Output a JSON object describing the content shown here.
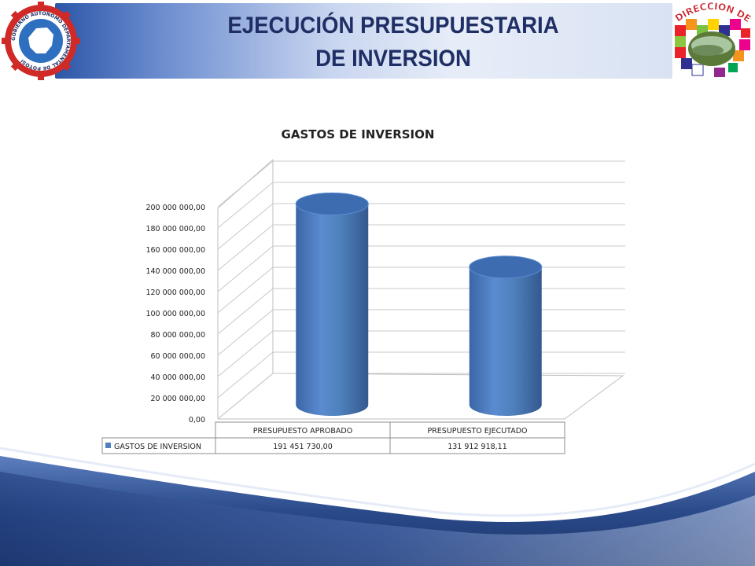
{
  "header": {
    "title_line1": "EJECUCIÓN  PRESUPUESTARIA",
    "title_line2": "DE INVERSION",
    "left_logo_text": "GOBIERNO AUTÓNOMO DEPARTAMENTAL DE POTOSÍ",
    "right_logo_text": "DIRECCION DE RIEGOS"
  },
  "colors": {
    "bar": "#4f81bd",
    "title": "#1f2f66",
    "wave": "#2a4a8a"
  },
  "chart_data": {
    "type": "bar",
    "style": "3d-cylinder",
    "title": "GASTOS  DE INVERSION",
    "categories": [
      "PRESUPUESTO APROBADO",
      "PRESUPUESTO EJECUTADO"
    ],
    "series": [
      {
        "name": "GASTOS DE INVERSION",
        "values": [
          191451730.0,
          131912918.11
        ]
      }
    ],
    "value_labels": [
      "191 451 730,00",
      "131 912 918,11"
    ],
    "ylim": [
      0,
      200000000
    ],
    "yticks": [
      0,
      20000000,
      40000000,
      60000000,
      80000000,
      100000000,
      120000000,
      140000000,
      160000000,
      180000000,
      200000000
    ],
    "ytick_labels": [
      "0,00",
      "20 000 000,00",
      "40 000 000,00",
      "60 000 000,00",
      "80 000 000,00",
      "100 000 000,00",
      "120 000 000,00",
      "140 000 000,00",
      "160 000 000,00",
      "180 000 000,00",
      "200 000 000,00"
    ],
    "grid": true,
    "legend": "data-table"
  }
}
